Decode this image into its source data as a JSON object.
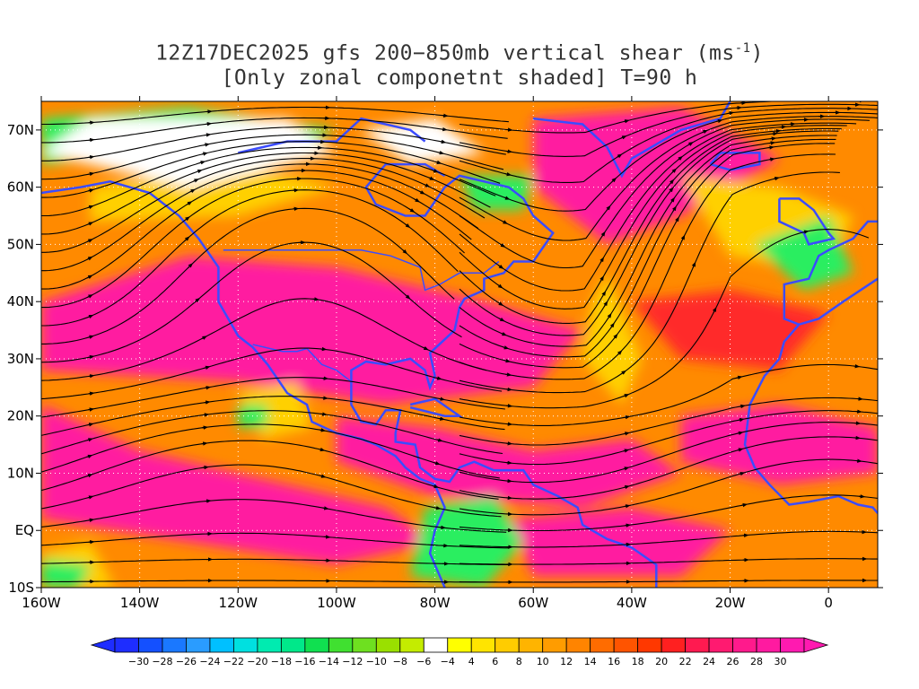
{
  "title": {
    "line1_pre": "12Z17DEC2025 gfs 200−850mb vertical shear (ms",
    "line1_sup": "-1",
    "line1_post": ")",
    "line2": "[Only zonal componetnt shaded] T=90 h"
  },
  "map": {
    "lon_range": [
      -160,
      10
    ],
    "lat_range": [
      -10,
      75
    ],
    "lat_labels": [
      {
        "lat": 70,
        "text": "70N"
      },
      {
        "lat": 60,
        "text": "60N"
      },
      {
        "lat": 50,
        "text": "50N"
      },
      {
        "lat": 40,
        "text": "40N"
      },
      {
        "lat": 30,
        "text": "30N"
      },
      {
        "lat": 20,
        "text": "20N"
      },
      {
        "lat": 10,
        "text": "10N"
      },
      {
        "lat": 0,
        "text": "EQ"
      },
      {
        "lat": -10,
        "text": "10S"
      }
    ],
    "lon_labels": [
      {
        "lon": -160,
        "text": "160W"
      },
      {
        "lon": -140,
        "text": "140W"
      },
      {
        "lon": -120,
        "text": "120W"
      },
      {
        "lon": -100,
        "text": "100W"
      },
      {
        "lon": -80,
        "text": "80W"
      },
      {
        "lon": -60,
        "text": "60W"
      },
      {
        "lon": -40,
        "text": "40W"
      },
      {
        "lon": -20,
        "text": "20W"
      },
      {
        "lon": 0,
        "text": "0"
      }
    ],
    "coast_color": "#3b4cff",
    "contour_color": "#8a2be2"
  },
  "colorbar": {
    "labels": [
      "-30",
      "-28",
      "-26",
      "-24",
      "-22",
      "-20",
      "-18",
      "-16",
      "-14",
      "-12",
      "-10",
      "-8",
      "-6",
      "-4",
      "4",
      "6",
      "8",
      "10",
      "12",
      "14",
      "16",
      "18",
      "20",
      "22",
      "24",
      "26",
      "28",
      "30"
    ],
    "colors": [
      "#1e2dff",
      "#1450ff",
      "#1a78ff",
      "#2a9cff",
      "#00c0ff",
      "#00e0e0",
      "#00ebb0",
      "#00e88a",
      "#10e050",
      "#40e030",
      "#6ee020",
      "#9ae000",
      "#c4ec00",
      "#ffffff",
      "#ffff00",
      "#ffe400",
      "#ffcc00",
      "#ffb400",
      "#ff9c00",
      "#ff8400",
      "#ff6c00",
      "#ff5400",
      "#ff3800",
      "#ff2020",
      "#ff1a50",
      "#ff1a70",
      "#ff1a8c",
      "#ff1aa0",
      "#ff1ab0"
    ]
  }
}
